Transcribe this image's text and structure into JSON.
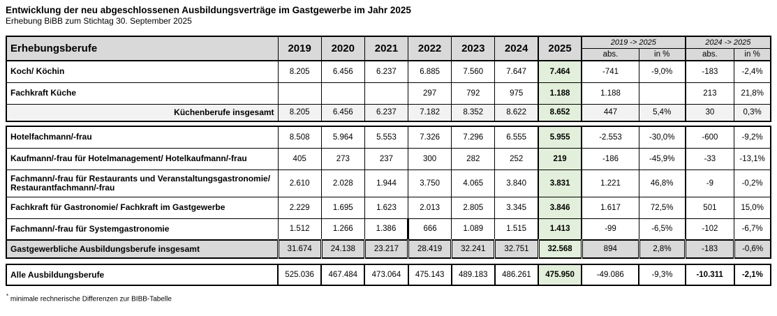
{
  "title": "Entwicklung der neu abgeschlossenen Ausbildungsverträge im Gastgewerbe im Jahr 2025",
  "subtitle": "Erhebung BiBB zum Stichtag 30. September 2025",
  "footnote": "minimale rechnerische Differenzen zur BIBB-Tabelle",
  "footnote_marker": "*",
  "colors": {
    "header_bg": "#d9d9d9",
    "subtotal_bg": "#f2f2f2",
    "total_bg": "#d9d9d9",
    "highlight_bg": "#e2efda",
    "border": "#000000"
  },
  "table": {
    "label_header": "Erhebungsberufe",
    "years": [
      "2019",
      "2020",
      "2021",
      "2022",
      "2023",
      "2024",
      "2025"
    ],
    "change_groups": [
      {
        "label": "2019 -> 2025",
        "sub": [
          "abs.",
          "in %"
        ]
      },
      {
        "label": "2024 -> 2025",
        "sub": [
          "abs.",
          "in %"
        ]
      }
    ],
    "rows": [
      {
        "section": "A",
        "type": "data",
        "label": "Koch/ Köchin",
        "values": [
          "8.205",
          "6.456",
          "6.237",
          "6.885",
          "7.560",
          "7.647",
          "7.464",
          "-741",
          "-9,0%",
          "-183",
          "-2,4%"
        ]
      },
      {
        "section": "A",
        "type": "data",
        "label": "Fachkraft Küche",
        "values": [
          "",
          "",
          "",
          "297",
          "792",
          "975",
          "1.188",
          "1.188",
          "",
          "213",
          "21,8%"
        ]
      },
      {
        "section": "A",
        "type": "subtotal",
        "label": "Küchenberufe insgesamt",
        "values": [
          "8.205",
          "6.456",
          "6.237",
          "7.182",
          "8.352",
          "8.622",
          "8.652",
          "447",
          "5,4%",
          "30",
          "0,3%"
        ]
      },
      {
        "section": "B",
        "type": "data",
        "label": "Hotelfachmann/-frau",
        "values": [
          "8.508",
          "5.964",
          "5.553",
          "7.326",
          "7.296",
          "6.555",
          "5.955",
          "-2.553",
          "-30,0%",
          "-600",
          "-9,2%"
        ]
      },
      {
        "section": "B",
        "type": "data",
        "label": "Kaufmann/-frau für Hotelmanagement/ Hotelkaufmann/-frau",
        "values": [
          "405",
          "273",
          "237",
          "300",
          "282",
          "252",
          "219",
          "-186",
          "-45,9%",
          "-33",
          "-13,1%"
        ]
      },
      {
        "section": "B",
        "type": "data",
        "tall": true,
        "label": "Fachmann/-frau für Restaurants und Veranstaltungsgastronomie/ Restaurantfachmann/-frau",
        "values": [
          "2.610",
          "2.028",
          "1.944",
          "3.750",
          "4.065",
          "3.840",
          "3.831",
          "1.221",
          "46,8%",
          "-9",
          "-0,2%"
        ]
      },
      {
        "section": "B",
        "type": "data",
        "label": "Fachkraft für Gastronomie/ Fachkraft im Gastgewerbe",
        "values": [
          "2.229",
          "1.695",
          "1.623",
          "2.013",
          "2.805",
          "3.345",
          "3.846",
          "1.617",
          "72,5%",
          "501",
          "15,0%"
        ]
      },
      {
        "section": "B",
        "type": "data",
        "break_2022": true,
        "label": "Fachmann/-frau für Systemgastronomie",
        "values": [
          "1.512",
          "1.266",
          "1.386",
          "666",
          "1.089",
          "1.515",
          "1.413",
          "-99",
          "-6,5%",
          "-102",
          "-6,7%"
        ]
      },
      {
        "section": "B",
        "type": "total",
        "label": "Gastgewerbliche Ausbildungsberufe insgesamt",
        "values": [
          "31.674",
          "24.138",
          "23.217",
          "28.419",
          "32.241",
          "32.751",
          "32.568",
          "894",
          "2,8%",
          "-183",
          "-0,6%"
        ]
      },
      {
        "section": "C",
        "type": "grand",
        "label": "Alle Ausbildungsberufe",
        "values": [
          "525.036",
          "467.484",
          "473.064",
          "475.143",
          "489.183",
          "486.261",
          "475.950",
          "-49.086",
          "-9,3%",
          "-10.311",
          "-2,1%"
        ]
      }
    ]
  }
}
